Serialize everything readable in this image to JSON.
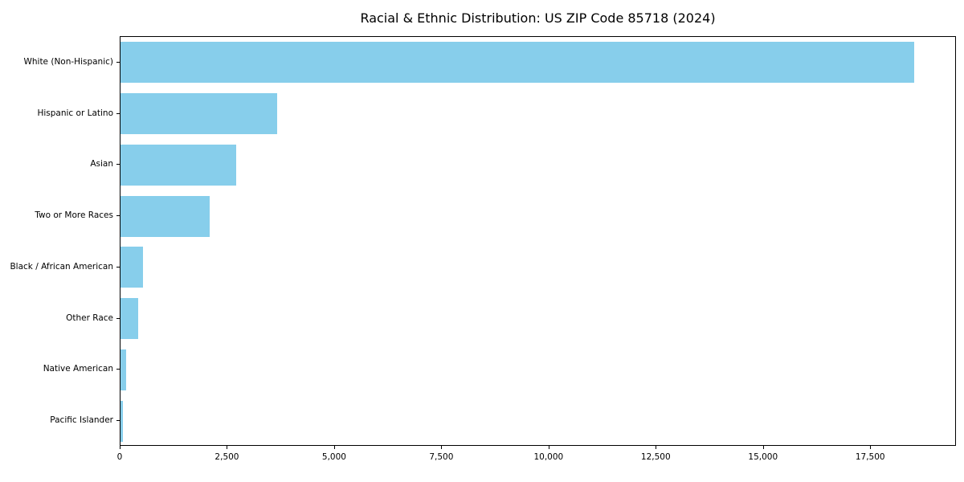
{
  "chart_data": {
    "type": "bar",
    "orientation": "horizontal",
    "title": "Racial & Ethnic Distribution: US ZIP Code 85718 (2024)",
    "categories": [
      "White (Non-Hispanic)",
      "Hispanic or Latino",
      "Asian",
      "Two or More Races",
      "Black / African American",
      "Other Race",
      "Native American",
      "Pacific Islander"
    ],
    "values": [
      18500,
      3650,
      2700,
      2080,
      525,
      420,
      140,
      55
    ],
    "xlabel": "",
    "ylabel": "",
    "xlim": [
      0,
      19500
    ],
    "xticks": [
      0,
      2500,
      5000,
      7500,
      10000,
      12500,
      15000,
      17500
    ],
    "xtick_labels": [
      "0",
      "2,500",
      "5,000",
      "7,500",
      "10,000",
      "12,500",
      "15,000",
      "17,500"
    ],
    "bar_color": "#87CEEB",
    "grid": false,
    "legend": false
  }
}
